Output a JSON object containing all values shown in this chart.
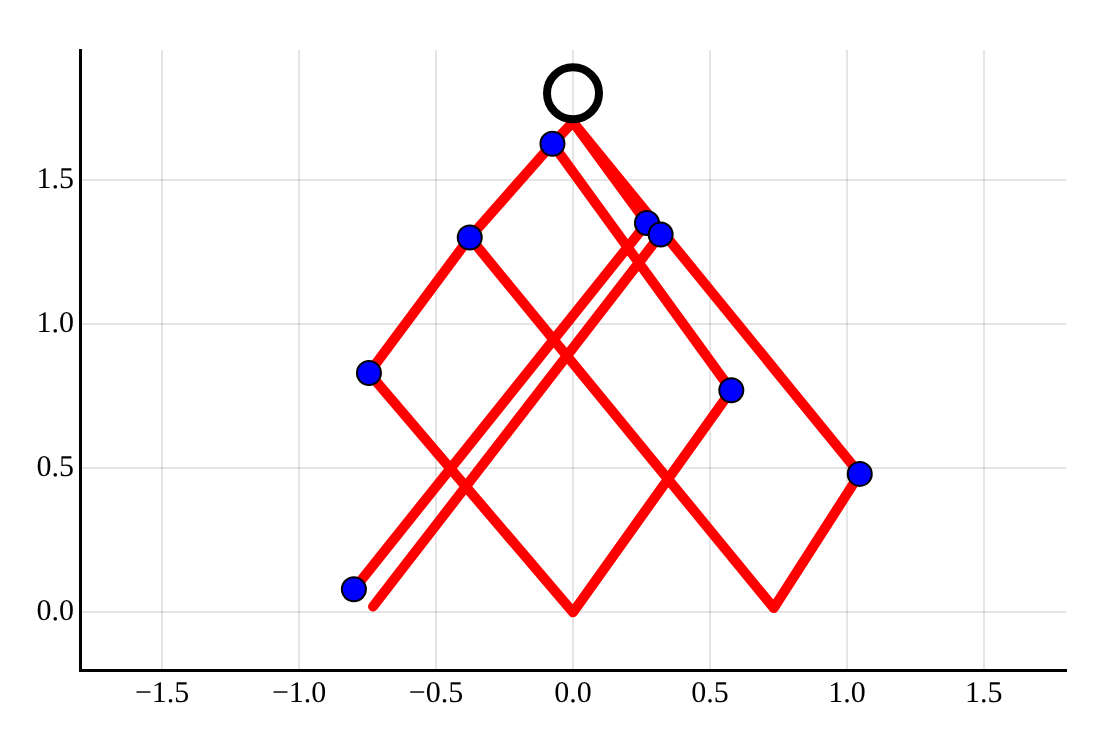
{
  "chart_data": {
    "type": "line",
    "xlim": [
      -1.8,
      1.8
    ],
    "ylim": [
      -0.2,
      1.95
    ],
    "xticks": [
      {
        "value": -1.5,
        "label": "−1.5"
      },
      {
        "value": -1,
        "label": "−1.0"
      },
      {
        "value": -0.5,
        "label": "−0.5"
      },
      {
        "value": 0,
        "label": "0.0"
      },
      {
        "value": 0.5,
        "label": "0.5"
      },
      {
        "value": 1,
        "label": "1.0"
      },
      {
        "value": 1.5,
        "label": "1.5"
      }
    ],
    "yticks": [
      {
        "value": 0,
        "label": "0.0"
      },
      {
        "value": 0.5,
        "label": "0.5"
      },
      {
        "value": 1,
        "label": "1.0"
      },
      {
        "value": 1.5,
        "label": "1.5"
      }
    ],
    "grid": true,
    "legend": false,
    "series": [
      {
        "color": "#ff0000",
        "marker": "none",
        "x": [
          -0.8,
          0.27,
          0,
          1.047,
          0.733,
          -0.377,
          -0.075,
          0.578,
          0,
          -0.745,
          -0.377,
          -0.075,
          0,
          0.32,
          -0.73
        ],
        "values": [
          0.08,
          1.35,
          1.7,
          0.48,
          0.015,
          1.3,
          1.625,
          0.77,
          0,
          0.83,
          1.3,
          1.625,
          1.7,
          1.31,
          0.02
        ]
      },
      {
        "type": "scatter",
        "color": "#0000ff",
        "marker": "circle",
        "x": [
          -0.8,
          0.27,
          0.32,
          -0.075,
          -0.377,
          -0.745,
          0.578,
          1.047
        ],
        "values": [
          0.08,
          1.35,
          1.31,
          1.625,
          1.3,
          0.83,
          0.77,
          0.48
        ]
      },
      {
        "type": "scatter",
        "color": "#000000",
        "marker": "circle",
        "x": [
          0
        ],
        "values": [
          1.8
        ]
      }
    ]
  }
}
